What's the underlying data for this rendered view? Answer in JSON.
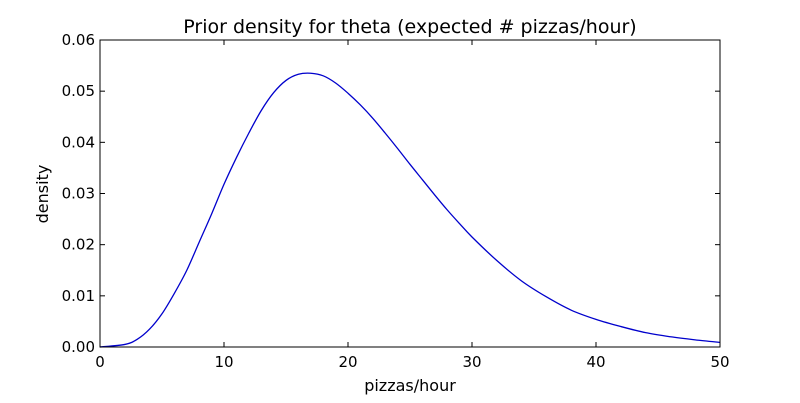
{
  "chart_data": {
    "type": "line",
    "title": "Prior density for theta (expected # pizzas/hour)",
    "xlabel": "pizzas/hour",
    "ylabel": "density",
    "xlim": [
      0,
      50
    ],
    "ylim": [
      0,
      0.06
    ],
    "xticks": [
      0,
      10,
      20,
      30,
      40,
      50
    ],
    "yticks": [
      0.0,
      0.01,
      0.02,
      0.03,
      0.04,
      0.05,
      0.06
    ],
    "ytick_labels": [
      "0.00",
      "0.01",
      "0.02",
      "0.03",
      "0.04",
      "0.05",
      "0.06"
    ],
    "grid": false,
    "legend": "none",
    "series": [
      {
        "color": "#0000cc",
        "x": [
          0,
          2,
          3,
          4,
          5,
          6,
          7,
          8,
          9,
          10,
          11,
          12,
          13,
          14,
          15,
          16,
          17,
          18,
          19,
          20,
          21,
          22,
          23,
          24,
          25,
          26,
          27,
          28,
          29,
          30,
          32,
          34,
          36,
          38,
          40,
          42,
          44,
          46,
          48,
          50
        ],
        "y": [
          0.0,
          0.0005,
          0.0015,
          0.0035,
          0.0065,
          0.0105,
          0.015,
          0.0205,
          0.026,
          0.0318,
          0.037,
          0.0418,
          0.0462,
          0.0497,
          0.0521,
          0.0533,
          0.0535,
          0.053,
          0.0516,
          0.0496,
          0.0473,
          0.0447,
          0.0418,
          0.0388,
          0.0357,
          0.0327,
          0.0297,
          0.0268,
          0.0241,
          0.0215,
          0.0169,
          0.0129,
          0.0098,
          0.0072,
          0.0054,
          0.004,
          0.0028,
          0.002,
          0.0014,
          0.0009
        ]
      }
    ]
  }
}
